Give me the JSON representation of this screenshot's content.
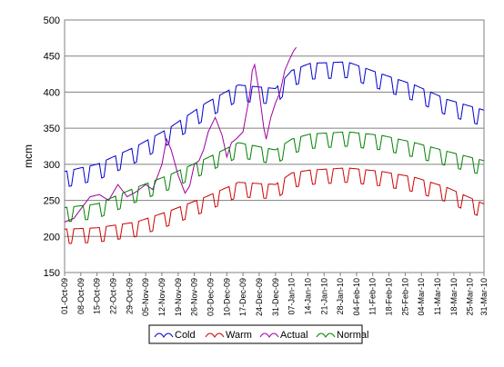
{
  "chart_data": {
    "type": "line",
    "title": "",
    "xlabel": "",
    "ylabel": "mcm",
    "ylim": [
      150,
      500
    ],
    "y_ticks": [
      "150",
      "200",
      "250",
      "300",
      "350",
      "400",
      "450",
      "500"
    ],
    "x_start": "2009-10-01",
    "x_end": "2010-03-31",
    "x_tick_labels": [
      "01-Oct-09",
      "08-Oct-09",
      "15-Oct-09",
      "22-Oct-09",
      "29-Oct-09",
      "05-Nov-09",
      "12-Nov-09",
      "19-Nov-09",
      "26-Nov-09",
      "03-Dec-09",
      "10-Dec-09",
      "17-Dec-09",
      "24-Dec-09",
      "31-Dec-09",
      "07-Jan-10",
      "14-Jan-10",
      "21-Jan-10",
      "28-Jan-10",
      "04-Feb-10",
      "11-Feb-10",
      "18-Feb-10",
      "25-Feb-10",
      "04-Mar-10",
      "11-Mar-10",
      "18-Mar-10",
      "25-Mar-10",
      "31-Mar-10"
    ],
    "grid": true,
    "legend_position": "bottom",
    "series": [
      {
        "name": "Cold",
        "color": "#0000cc",
        "points": [
          [
            "2009-10-01",
            290
          ],
          [
            "2009-10-15",
            300
          ],
          [
            "2009-11-01",
            325
          ],
          [
            "2009-11-15",
            350
          ],
          [
            "2009-12-01",
            385
          ],
          [
            "2009-12-15",
            410
          ],
          [
            "2009-12-31",
            405
          ],
          [
            "2010-01-07",
            430
          ],
          [
            "2010-01-15",
            440
          ],
          [
            "2010-01-31",
            442
          ],
          [
            "2010-02-15",
            425
          ],
          [
            "2010-03-01",
            410
          ],
          [
            "2010-03-15",
            390
          ],
          [
            "2010-03-31",
            375
          ]
        ]
      },
      {
        "name": "Warm",
        "color": "#cc0000",
        "points": [
          [
            "2009-10-01",
            210
          ],
          [
            "2009-10-15",
            212
          ],
          [
            "2009-11-01",
            220
          ],
          [
            "2009-11-15",
            235
          ],
          [
            "2009-12-01",
            255
          ],
          [
            "2009-12-15",
            275
          ],
          [
            "2009-12-31",
            272
          ],
          [
            "2010-01-07",
            288
          ],
          [
            "2010-01-15",
            292
          ],
          [
            "2010-01-31",
            295
          ],
          [
            "2010-02-15",
            290
          ],
          [
            "2010-03-01",
            282
          ],
          [
            "2010-03-15",
            268
          ],
          [
            "2010-03-31",
            245
          ]
        ]
      },
      {
        "name": "Actual",
        "color": "#a000a0",
        "points": [
          [
            "2009-10-01",
            220
          ],
          [
            "2009-10-05",
            225
          ],
          [
            "2009-10-08",
            238
          ],
          [
            "2009-10-12",
            255
          ],
          [
            "2009-10-16",
            258
          ],
          [
            "2009-10-20",
            250
          ],
          [
            "2009-10-24",
            272
          ],
          [
            "2009-10-28",
            255
          ],
          [
            "2009-11-01",
            262
          ],
          [
            "2009-11-05",
            272
          ],
          [
            "2009-11-08",
            265
          ],
          [
            "2009-11-12",
            300
          ],
          [
            "2009-11-14",
            335
          ],
          [
            "2009-11-16",
            320
          ],
          [
            "2009-11-19",
            285
          ],
          [
            "2009-11-22",
            260
          ],
          [
            "2009-11-24",
            270
          ],
          [
            "2009-11-26",
            300
          ],
          [
            "2009-11-28",
            305
          ],
          [
            "2009-11-30",
            320
          ],
          [
            "2009-12-02",
            345
          ],
          [
            "2009-12-05",
            365
          ],
          [
            "2009-12-08",
            340
          ],
          [
            "2009-12-10",
            310
          ],
          [
            "2009-12-12",
            330
          ],
          [
            "2009-12-14",
            335
          ],
          [
            "2009-12-17",
            345
          ],
          [
            "2009-12-19",
            380
          ],
          [
            "2009-12-20",
            400
          ],
          [
            "2009-12-21",
            430
          ],
          [
            "2009-12-22",
            438
          ],
          [
            "2009-12-24",
            400
          ],
          [
            "2009-12-26",
            350
          ],
          [
            "2009-12-27",
            335
          ],
          [
            "2009-12-29",
            365
          ],
          [
            "2009-12-31",
            385
          ],
          [
            "2010-01-02",
            400
          ],
          [
            "2010-01-04",
            430
          ],
          [
            "2010-01-06",
            445
          ],
          [
            "2010-01-08",
            458
          ],
          [
            "2010-01-09",
            462
          ]
        ]
      },
      {
        "name": "Normal",
        "color": "#008000",
        "points": [
          [
            "2009-10-01",
            240
          ],
          [
            "2009-10-15",
            245
          ],
          [
            "2009-11-01",
            268
          ],
          [
            "2009-11-15",
            285
          ],
          [
            "2009-12-01",
            308
          ],
          [
            "2009-12-15",
            330
          ],
          [
            "2009-12-31",
            320
          ],
          [
            "2010-01-07",
            335
          ],
          [
            "2010-01-15",
            342
          ],
          [
            "2010-01-31",
            345
          ],
          [
            "2010-02-15",
            340
          ],
          [
            "2010-03-01",
            330
          ],
          [
            "2010-03-15",
            318
          ],
          [
            "2010-03-31",
            305
          ]
        ]
      }
    ]
  }
}
